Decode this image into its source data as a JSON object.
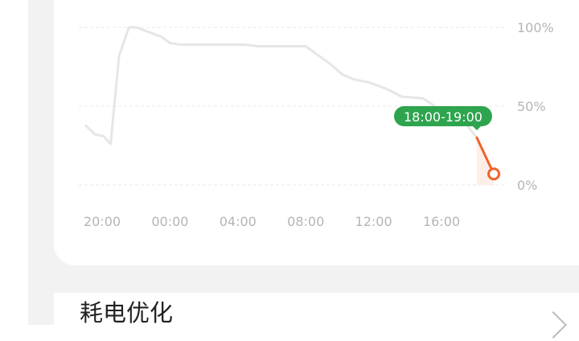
{
  "chart_data": {
    "type": "line",
    "ylim": [
      0,
      100
    ],
    "y_ticks": [
      "100%",
      "50%",
      "0%"
    ],
    "x_ticks": [
      "20:00",
      "00:00",
      "04:00",
      "08:00",
      "12:00",
      "16:00"
    ],
    "grid": true,
    "points": [
      {
        "t": "19:00",
        "day": 0,
        "v": 38
      },
      {
        "t": "19:35",
        "day": 0,
        "v": 32
      },
      {
        "t": "20:05",
        "day": 0,
        "v": 31
      },
      {
        "t": "20:30",
        "day": 0,
        "v": 26
      },
      {
        "t": "21:00",
        "day": 0,
        "v": 82
      },
      {
        "t": "21:35",
        "day": 0,
        "v": 100
      },
      {
        "t": "22:00",
        "day": 0,
        "v": 100
      },
      {
        "t": "22:30",
        "day": 0,
        "v": 98
      },
      {
        "t": "23:00",
        "day": 0,
        "v": 96
      },
      {
        "t": "23:30",
        "day": 0,
        "v": 94
      },
      {
        "t": "00:00",
        "day": 1,
        "v": 90
      },
      {
        "t": "00:40",
        "day": 1,
        "v": 89
      },
      {
        "t": "04:25",
        "day": 1,
        "v": 89
      },
      {
        "t": "05:10",
        "day": 1,
        "v": 88
      },
      {
        "t": "08:00",
        "day": 1,
        "v": 88
      },
      {
        "t": "09:25",
        "day": 1,
        "v": 77
      },
      {
        "t": "10:10",
        "day": 1,
        "v": 70
      },
      {
        "t": "10:50",
        "day": 1,
        "v": 67
      },
      {
        "t": "11:45",
        "day": 1,
        "v": 65
      },
      {
        "t": "12:45",
        "day": 1,
        "v": 61
      },
      {
        "t": "13:40",
        "day": 1,
        "v": 56
      },
      {
        "t": "14:55",
        "day": 1,
        "v": 55
      },
      {
        "t": "16:00",
        "day": 1,
        "v": 47
      },
      {
        "t": "17:30",
        "day": 1,
        "v": 38
      },
      {
        "t": "18:05",
        "day": 1,
        "v": 30
      },
      {
        "t": "19:05",
        "day": 1,
        "v": 7
      }
    ],
    "highlight": {
      "label": "18:00-19:00",
      "from_index": 24,
      "to_index": 25
    },
    "colors": {
      "line": "#e6e6e6",
      "highlight": "#f0622d",
      "tooltip": "#2ea44f",
      "grid": "#e8e8e8",
      "tick": "#b5b5b5"
    }
  },
  "section": {
    "title": "耗电优化"
  }
}
